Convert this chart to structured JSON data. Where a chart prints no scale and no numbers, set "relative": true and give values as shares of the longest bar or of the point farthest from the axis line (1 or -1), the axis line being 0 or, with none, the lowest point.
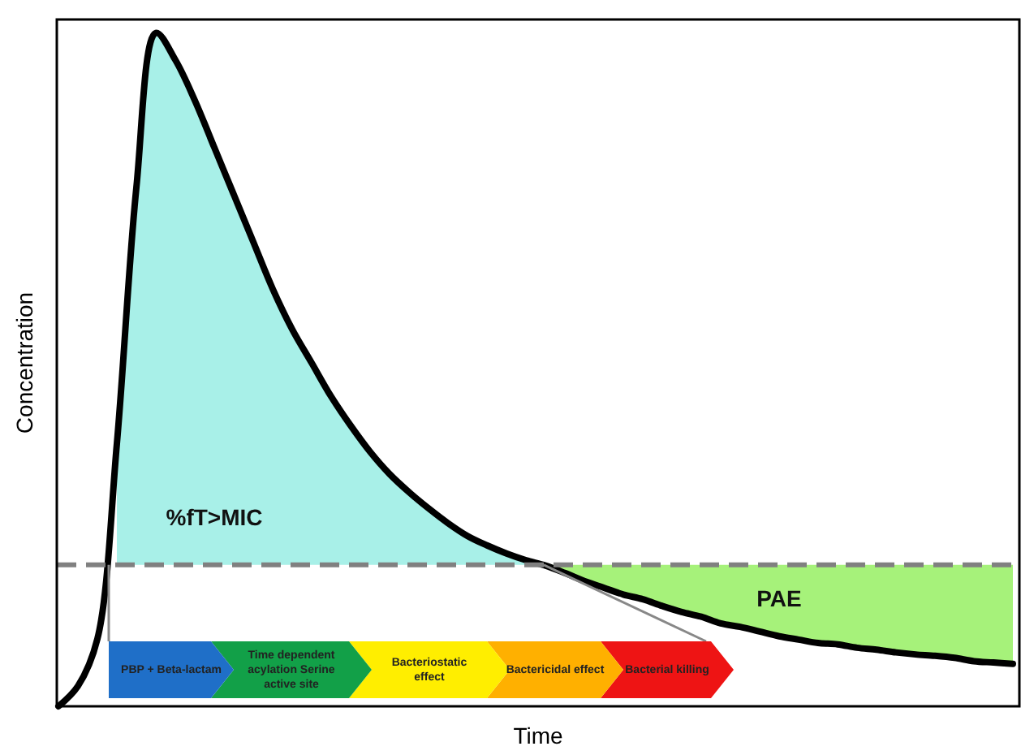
{
  "chart_data": {
    "type": "line",
    "relative": true,
    "xlabel": "Time",
    "ylabel": "Concentration",
    "categories": [
      null,
      null,
      null,
      null,
      null,
      null,
      null,
      null,
      null,
      null,
      null,
      null,
      null,
      null,
      null,
      null,
      null,
      null,
      null,
      null,
      null,
      null,
      null,
      null,
      null,
      null,
      null,
      null,
      null,
      null,
      null,
      null,
      null,
      null,
      null,
      null,
      null,
      null,
      null,
      null,
      null,
      null,
      null,
      null,
      null,
      null,
      null,
      null,
      null,
      null
    ],
    "series": [
      {
        "type": "area",
        "color": "#a8f0e8",
        "values": [
          null,
          null,
          null,
          0.39,
          0.77,
          1,
          0.96,
          0.9,
          0.83,
          0.76,
          0.69,
          0.62,
          0.56,
          0.51,
          0.46,
          0.417,
          0.378,
          0.345,
          0.318,
          0.294,
          0.272,
          0.253,
          0.239,
          0.227,
          0.217,
          null,
          null,
          null,
          null,
          null,
          null,
          null,
          null,
          null,
          null,
          null,
          null,
          null,
          null,
          null,
          null,
          null,
          null,
          null,
          null,
          null,
          null,
          null,
          null,
          null
        ]
      },
      {
        "type": "area",
        "color": "#a6f27a",
        "values": [
          null,
          null,
          null,
          null,
          null,
          null,
          null,
          null,
          null,
          null,
          null,
          null,
          null,
          null,
          null,
          null,
          null,
          null,
          null,
          null,
          null,
          null,
          null,
          null,
          null,
          0.21,
          0.21,
          0.21,
          0.21,
          0.21,
          0.21,
          0.21,
          0.21,
          0.21,
          0.21,
          0.21,
          0.21,
          0.21,
          0.21,
          0.21,
          0.21,
          0.21,
          0.21,
          0.21,
          0.21,
          0.21,
          0.21,
          0.21,
          0.21,
          0.21
        ]
      },
      {
        "color": "#000000",
        "values": [
          0,
          0.03,
          0.1,
          0.39,
          0.77,
          1,
          0.96,
          0.9,
          0.83,
          0.76,
          0.69,
          0.62,
          0.56,
          0.51,
          0.46,
          0.417,
          0.378,
          0.345,
          0.318,
          0.294,
          0.272,
          0.253,
          0.239,
          0.227,
          0.217,
          0.209,
          0.198,
          0.186,
          0.176,
          0.166,
          0.159,
          0.149,
          0.14,
          0.133,
          0.123,
          0.118,
          0.111,
          0.104,
          0.099,
          0.094,
          0.092,
          0.087,
          0.084,
          0.08,
          0.077,
          0.075,
          0.072,
          0.067,
          0.065,
          0.063
        ]
      }
    ],
    "ref_lines": [
      {
        "axis": "y",
        "value": 0.21,
        "color": "#808080",
        "line_style": "dashed"
      }
    ],
    "annotations": [
      "%fT>MIC",
      "PAE",
      "PBP + Beta-lactam",
      "Time dependent acylation Serine active site",
      "Bacteriostatic effect",
      "Bactericidal effect",
      "Bacterial killing"
    ]
  }
}
